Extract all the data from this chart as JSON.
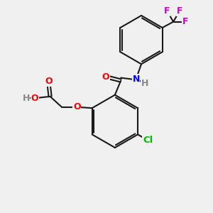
{
  "background_color": "#f0f0f0",
  "bond_color": "#1a1a1a",
  "bond_width": 1.5,
  "atom_colors": {
    "O": "#ff0000",
    "N": "#0000ff",
    "Cl": "#00bb00",
    "F": "#cc00cc",
    "H": "#888888",
    "C": "#1a1a1a"
  },
  "font_size": 9
}
